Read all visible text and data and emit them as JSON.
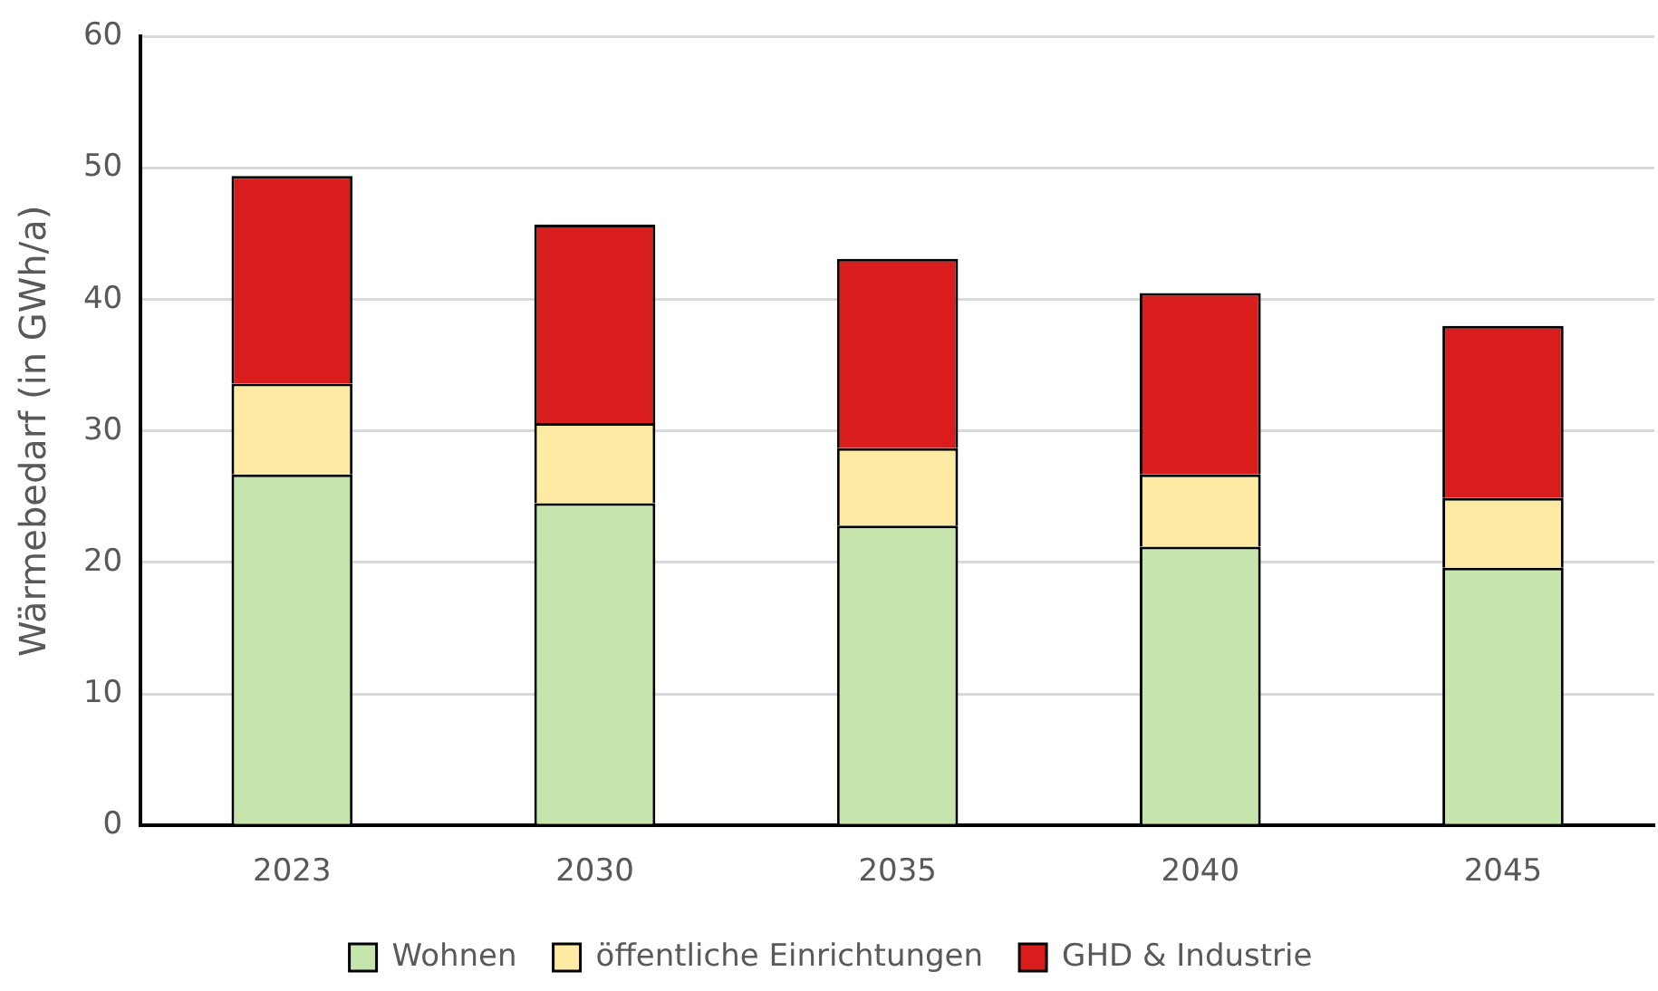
{
  "chart_data": {
    "type": "bar",
    "ylabel": "Wärmebedarf (in GWh/a)",
    "categories": [
      "2023",
      "2030",
      "2035",
      "2040",
      "2045"
    ],
    "stacked": true,
    "ylim": [
      0,
      60
    ],
    "yticks": [
      0,
      10,
      20,
      30,
      40,
      50,
      60
    ],
    "grid": "y",
    "legend": "bottom",
    "series": [
      {
        "name": "Wohnen",
        "color": "#c5e5ad",
        "values": [
          26.7,
          24.5,
          22.8,
          21.2,
          19.6
        ]
      },
      {
        "name": "öffentliche Einrichtungen",
        "color": "#feeaa2",
        "values": [
          6.9,
          6.1,
          5.9,
          5.5,
          5.3
        ]
      },
      {
        "name": "GHD & Industrie",
        "color": "#d91c1c",
        "values": [
          15.8,
          15.1,
          14.4,
          13.8,
          13.1
        ]
      }
    ]
  }
}
